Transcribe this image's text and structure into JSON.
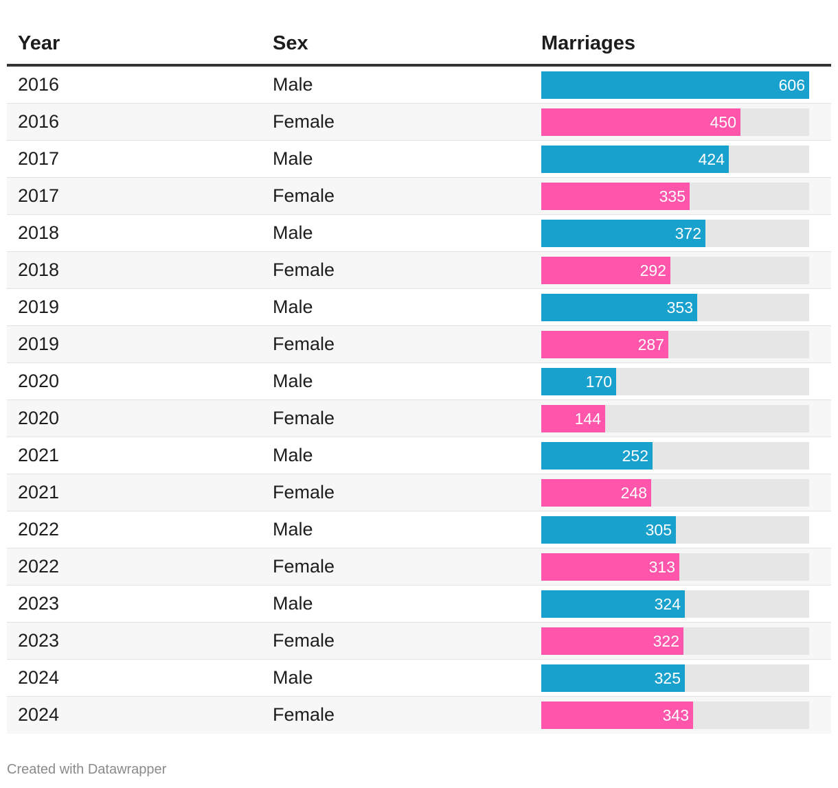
{
  "colors": {
    "Male": "#18a1cd",
    "Female": "#ff55aa",
    "track": "#e6e6e6"
  },
  "chart_data": {
    "type": "table",
    "columns": [
      "Year",
      "Sex",
      "Marriages"
    ],
    "max": 606,
    "rows": [
      {
        "year": "2016",
        "sex": "Male",
        "value": 606
      },
      {
        "year": "2016",
        "sex": "Female",
        "value": 450
      },
      {
        "year": "2017",
        "sex": "Male",
        "value": 424
      },
      {
        "year": "2017",
        "sex": "Female",
        "value": 335
      },
      {
        "year": "2018",
        "sex": "Male",
        "value": 372
      },
      {
        "year": "2018",
        "sex": "Female",
        "value": 292
      },
      {
        "year": "2019",
        "sex": "Male",
        "value": 353
      },
      {
        "year": "2019",
        "sex": "Female",
        "value": 287
      },
      {
        "year": "2020",
        "sex": "Male",
        "value": 170
      },
      {
        "year": "2020",
        "sex": "Female",
        "value": 144
      },
      {
        "year": "2021",
        "sex": "Male",
        "value": 252
      },
      {
        "year": "2021",
        "sex": "Female",
        "value": 248
      },
      {
        "year": "2022",
        "sex": "Male",
        "value": 305
      },
      {
        "year": "2022",
        "sex": "Female",
        "value": 313
      },
      {
        "year": "2023",
        "sex": "Male",
        "value": 324
      },
      {
        "year": "2023",
        "sex": "Female",
        "value": 322
      },
      {
        "year": "2024",
        "sex": "Male",
        "value": 325
      },
      {
        "year": "2024",
        "sex": "Female",
        "value": 343
      }
    ]
  },
  "footer": {
    "credit": "Created with Datawrapper"
  }
}
